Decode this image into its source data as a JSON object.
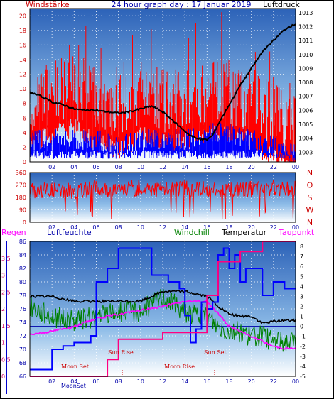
{
  "header": {
    "left_label": "Windstärke",
    "title": "24 hour graph day : 17 Januar 2019",
    "right_label": "Luftdruck"
  },
  "chart_data": [
    {
      "type": "line",
      "title": "24 hour graph day : 17 Januar 2019",
      "x_ticks": [
        "02",
        "04",
        "06",
        "08",
        "10",
        "12",
        "14",
        "16",
        "18",
        "20",
        "22",
        "00"
      ],
      "y_left_label": "Windstärke",
      "y_left_ticks": [
        "0",
        "2",
        "4",
        "6",
        "8",
        "10",
        "12",
        "14",
        "16",
        "18",
        "20"
      ],
      "y_left_range": [
        0,
        21
      ],
      "y_right_label": "Luftdruck",
      "y_right_ticks": [
        "1003",
        "1004",
        "1005",
        "1006",
        "1007",
        "1008",
        "1009",
        "1010",
        "1011",
        "1012",
        "1013"
      ],
      "y_right_range": [
        1002.3,
        1013.3
      ],
      "series": [
        {
          "name": "Luftdruck",
          "color": "#000000",
          "x": [
            0,
            1,
            2,
            3,
            4,
            5,
            6,
            7,
            8,
            9,
            10,
            11,
            12,
            13,
            14,
            14.5,
            15,
            15.5,
            16,
            16.5,
            17,
            18,
            19,
            20,
            21,
            22,
            23,
            24
          ],
          "values": [
            1007.3,
            1007.0,
            1006.6,
            1006.4,
            1006.1,
            1006.0,
            1006.0,
            1005.9,
            1005.8,
            1005.9,
            1006.1,
            1006.3,
            1005.9,
            1005.2,
            1004.5,
            1004.2,
            1004.0,
            1003.9,
            1003.9,
            1004.2,
            1005.0,
            1006.4,
            1007.8,
            1009.0,
            1010.2,
            1011.0,
            1011.8,
            1012.2
          ]
        },
        {
          "name": "Windstärke",
          "color": "#ff0000",
          "x": [
            0,
            2,
            4,
            6,
            8,
            10,
            12,
            14,
            16,
            18,
            20,
            22,
            24
          ],
          "values": [
            8,
            9,
            10,
            8,
            7,
            9,
            8,
            8,
            9,
            9,
            8,
            6,
            4
          ]
        },
        {
          "name": "Böen",
          "color": "#0000ff",
          "x": [
            0,
            2,
            4,
            6,
            8,
            10,
            12,
            14,
            16,
            18,
            20,
            22,
            24
          ],
          "values": [
            3,
            3,
            3,
            3,
            2,
            3,
            3,
            3,
            4,
            4,
            3,
            2,
            1
          ]
        }
      ]
    },
    {
      "type": "scatter",
      "x_ticks": [
        "02",
        "04",
        "06",
        "08",
        "10",
        "12",
        "14",
        "16",
        "18",
        "20",
        "22",
        "00"
      ],
      "y_left_ticks": [
        "0",
        "90",
        "180",
        "270",
        "360"
      ],
      "y_left_range": [
        0,
        360
      ],
      "y_right_ticks": [
        "N",
        "W",
        "S",
        "O",
        "N"
      ],
      "series": [
        {
          "name": "Windrichtung",
          "color": "#ff0000",
          "x": [
            0,
            2,
            4,
            6,
            8,
            10,
            12,
            14,
            16,
            18,
            20,
            22,
            24
          ],
          "values": [
            230,
            240,
            225,
            245,
            235,
            250,
            240,
            245,
            240,
            235,
            240,
            250,
            240
          ]
        }
      ]
    },
    {
      "type": "line",
      "x_ticks": [
        "02",
        "04",
        "06",
        "08",
        "10",
        "12",
        "14",
        "16",
        "18",
        "20",
        "22",
        "00"
      ],
      "y_far_left_label": "Regen",
      "y_far_left_ticks": [
        "0",
        "0.5",
        "1",
        "1.5",
        "2",
        "2.5",
        "3",
        "3.5"
      ],
      "y_left_label": "Luftfeuchte",
      "y_left_ticks": [
        "66",
        "68",
        "70",
        "72",
        "74",
        "76",
        "78",
        "80",
        "82",
        "84",
        "86"
      ],
      "y_left_range": [
        66,
        86
      ],
      "y_right_ticks": [
        "-5",
        "-4",
        "-3",
        "-2",
        "-1",
        "0",
        "1",
        "2",
        "3",
        "4",
        "5",
        "6",
        "7",
        "8"
      ],
      "y_right_range": [
        -5,
        8.5
      ],
      "legend": [
        "Windchill",
        "Temperatur",
        "Taupunkt"
      ],
      "annotations": [
        "Moon Set",
        "Sun Rise",
        "Moon Rise",
        "Sun Set",
        "MoonSet"
      ],
      "series": [
        {
          "name": "Luftfeuchte",
          "color": "#0000ff",
          "x": [
            0,
            1,
            2,
            3,
            4,
            5,
            5.5,
            6,
            7,
            8,
            9,
            10,
            11,
            12,
            12.5,
            13,
            13.5,
            14,
            14.5,
            15,
            15.5,
            16,
            16.5,
            17,
            17.5,
            18,
            18.5,
            19,
            19.5,
            20,
            21,
            22,
            23,
            24
          ],
          "values": [
            67,
            67,
            70,
            70.5,
            71,
            71,
            72,
            80,
            82,
            85,
            85,
            85,
            81,
            81,
            80,
            80,
            79,
            75,
            71,
            73,
            77,
            76,
            77,
            84,
            85,
            82,
            84,
            80,
            82,
            82,
            78,
            80,
            79,
            79
          ]
        },
        {
          "name": "Temperatur",
          "color": "#000000",
          "x": [
            0,
            2,
            4,
            6,
            8,
            10,
            12,
            14,
            16,
            17,
            18,
            19,
            20,
            21,
            22,
            23,
            24
          ],
          "values": [
            3.0,
            3.0,
            2.5,
            2.5,
            2.5,
            2.5,
            3.5,
            3.5,
            3.0,
            2.0,
            1.2,
            1.0,
            1.0,
            0.3,
            0.5,
            0.6,
            0.6
          ]
        },
        {
          "name": "Windchill",
          "color": "#008000",
          "x": [
            0,
            2,
            4,
            6,
            8,
            10,
            12,
            14,
            16,
            17,
            18,
            19,
            20,
            21,
            22,
            23,
            24
          ],
          "values": [
            2,
            1,
            0.5,
            1,
            1.5,
            1.5,
            3,
            1.5,
            1,
            0,
            -0.5,
            -0.5,
            -1,
            -1,
            -1.5,
            -1.5,
            -1.5
          ]
        },
        {
          "name": "Taupunkt",
          "color": "#ff00ff",
          "x": [
            0,
            2,
            4,
            6,
            8,
            10,
            12,
            14,
            16,
            17,
            18,
            19,
            20,
            21,
            22,
            23,
            24
          ],
          "values": [
            -0.8,
            -0.5,
            0,
            0.8,
            1.2,
            1.6,
            2.0,
            2.5,
            2.5,
            1.3,
            0,
            -0.5,
            -1,
            -1.5,
            -2,
            -2.2,
            -2.2
          ]
        },
        {
          "name": "Regen",
          "color": "#ff0080",
          "x": [
            0,
            6,
            7,
            8,
            12,
            16,
            17,
            19,
            20,
            21,
            22,
            24
          ],
          "values": [
            0,
            0,
            0.5,
            1.1,
            1.3,
            2.4,
            3.4,
            3.7,
            3.7,
            4.0,
            4.0,
            4.0
          ]
        }
      ]
    }
  ],
  "panel3_header": {
    "regen": "Regen",
    "luftfeuchte": "Luftfeuchte",
    "windchill": "Windchill",
    "temperatur": "Temperatur",
    "taupunkt": "Taupunkt"
  },
  "notes": {
    "moon_set": "Moon Set",
    "sun_rise": "Sun Rise",
    "moon_rise": "Moon Rise",
    "sun_set": "Sun Set",
    "moon_set_axis": "MoonSet"
  },
  "colors": {
    "sky_top": "#3a6fc8",
    "sky_bottom": "#ffffff",
    "wind": "#ff0000",
    "gust": "#0000ff",
    "pressure": "#000000",
    "humidity": "#0000ff",
    "temperature": "#000000",
    "windchill": "#008000",
    "dewpoint": "#ff00ff",
    "rain": "#ff0080",
    "axis_label_red": "#cc0000",
    "axis_label_blue": "#0000aa"
  }
}
